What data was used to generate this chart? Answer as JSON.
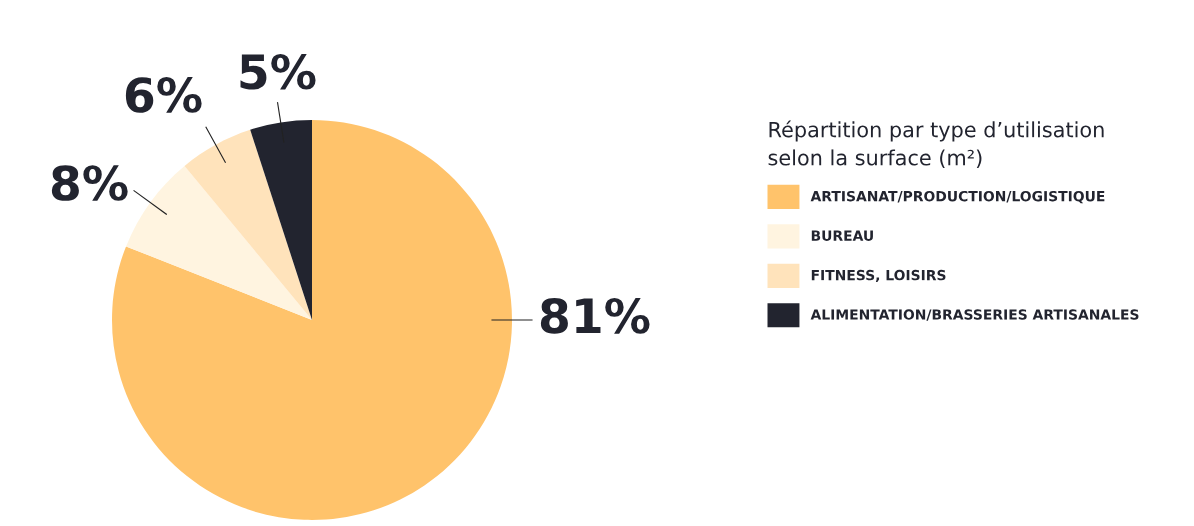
{
  "chart_data": {
    "type": "pie",
    "categories": [
      "ARTISANAT/PRODUCTION/LOGISTIQUE",
      "BUREAU",
      "FITNESS, LOISIRS",
      "ALIMENTATION/BRASSERIES ARTISANALES"
    ],
    "values": [
      81,
      8,
      6,
      5
    ],
    "colors": [
      "#ffc36b",
      "#fff4e0",
      "#ffe3bb",
      "#22242f"
    ],
    "value_labels": [
      "81%",
      "8%",
      "6%",
      "5%"
    ],
    "legend_title": "Répartition par type d’utilisation\nselon la surface (m²)",
    "legend": "right"
  }
}
